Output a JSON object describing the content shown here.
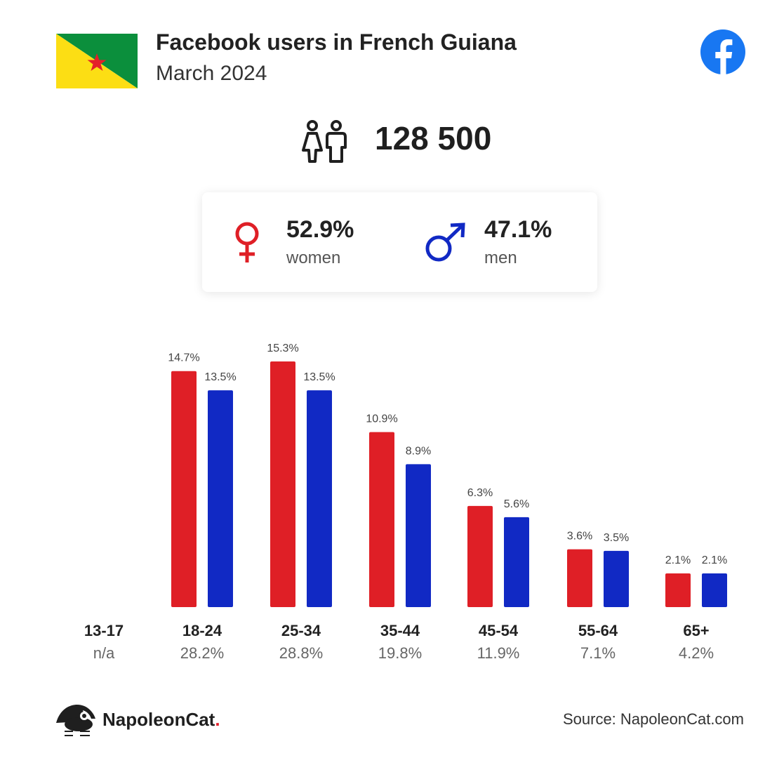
{
  "header": {
    "title": "Facebook users in French Guiana",
    "subtitle": "March 2024",
    "flag_icon": "french-guiana-flag",
    "brand_icon": "facebook-icon"
  },
  "summary": {
    "total_users": "128 500",
    "users_icon": "users-icon"
  },
  "gender": {
    "women_pct": "52.9%",
    "women_label": "women",
    "men_pct": "47.1%",
    "men_label": "men"
  },
  "colors": {
    "women": "#df1f26",
    "men": "#1129c4",
    "flag_green": "#0b8f3c",
    "flag_yellow": "#fcde14",
    "facebook_blue": "#1877f2"
  },
  "chart_data": {
    "type": "bar",
    "categories": [
      "13-17",
      "18-24",
      "25-34",
      "35-44",
      "45-54",
      "55-64",
      "65+"
    ],
    "category_shares": [
      "n/a",
      "28.2%",
      "28.8%",
      "19.8%",
      "11.9%",
      "7.1%",
      "4.2%"
    ],
    "series": [
      {
        "name": "women",
        "values": [
          null,
          14.7,
          15.3,
          10.9,
          6.3,
          3.6,
          2.1
        ],
        "labels": [
          "",
          "14.7%",
          "15.3%",
          "10.9%",
          "6.3%",
          "3.6%",
          "2.1%"
        ]
      },
      {
        "name": "men",
        "values": [
          null,
          13.5,
          13.5,
          8.9,
          5.6,
          3.5,
          2.1
        ],
        "labels": [
          "",
          "13.5%",
          "13.5%",
          "8.9%",
          "5.6%",
          "3.5%",
          "2.1%"
        ]
      }
    ],
    "xlabel": "",
    "ylabel": "",
    "grid": false
  },
  "footer": {
    "brand_name": "NapoleonCat",
    "brand_dot": ".",
    "brand_icon": "napoleoncat-logo",
    "source": "Source: NapoleonCat.com"
  }
}
